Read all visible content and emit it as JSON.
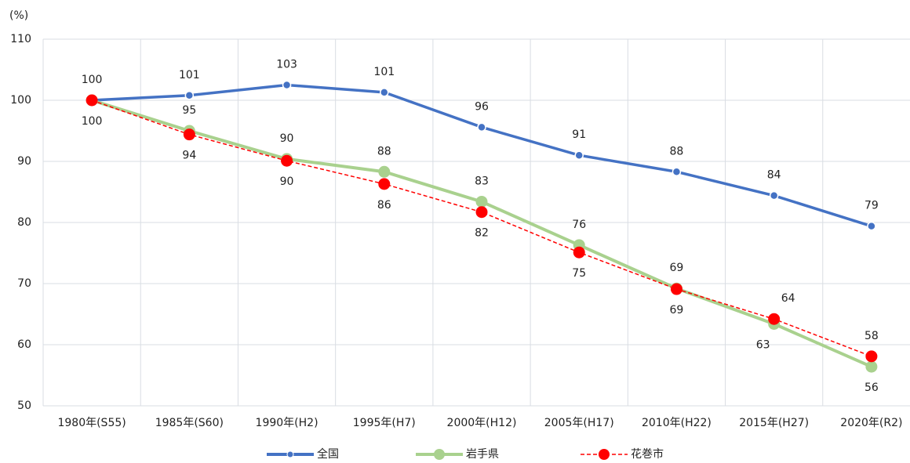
{
  "chart_data": {
    "type": "line",
    "y_label": "(%)",
    "categories": [
      "1980年(S55)",
      "1985年(S60)",
      "1990年(H2)",
      "1995年(H7)",
      "2000年(H12)",
      "2005年(H17)",
      "2010年(H22)",
      "2015年(H27)",
      "2020年(R2)"
    ],
    "series": [
      {
        "name": "全国",
        "color": "#4472c4",
        "dashed": false,
        "values": [
          100,
          100.8,
          102.5,
          101.3,
          95.6,
          91.0,
          88.3,
          84.4,
          79.4
        ],
        "value_labels": [
          "100",
          "101",
          "103",
          "101",
          "96",
          "91",
          "88",
          "84",
          "79"
        ]
      },
      {
        "name": "岩手県",
        "color": "#a9d18e",
        "dashed": false,
        "values": [
          100,
          95.0,
          90.4,
          88.3,
          83.4,
          76.3,
          69.2,
          63.4,
          56.4
        ],
        "value_labels": [
          null,
          "95",
          "90",
          "88",
          "83",
          "76",
          "69",
          "63",
          "56"
        ]
      },
      {
        "name": "花巻市",
        "color": "#ff0000",
        "dashed": true,
        "values": [
          100,
          94.4,
          90.1,
          86.3,
          81.7,
          75.1,
          69.1,
          64.2,
          58.1
        ],
        "value_labels": [
          "100",
          "94",
          "90",
          "86",
          "82",
          "75",
          "69",
          "64",
          "58"
        ]
      }
    ],
    "ylim": [
      50,
      110
    ],
    "yticks": [
      50,
      60,
      70,
      80,
      90,
      100,
      110
    ],
    "grid": true,
    "legend": "bottom"
  }
}
